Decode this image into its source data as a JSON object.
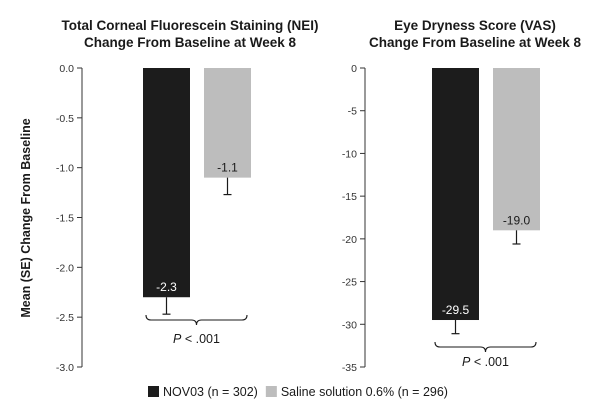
{
  "ylabel": "Mean (SE) Change From Baseline",
  "legend": [
    {
      "label": "NOV03 (n = 302)",
      "color": "#1c1c1c"
    },
    {
      "label": "Saline solution 0.6% (n = 296)",
      "color": "#bdbdbd"
    }
  ],
  "chart_data": [
    {
      "type": "bar",
      "title_lines": [
        "Total Corneal Fluorescein Staining (NEI)",
        "Change From Baseline at Week 8"
      ],
      "ylim": [
        -3.0,
        0.0
      ],
      "yticks": [
        "0.0",
        "-0.5",
        "-1.0",
        "-1.5",
        "-2.0",
        "-2.5",
        "-3.0"
      ],
      "series": [
        {
          "name": "NOV03 (n = 302)",
          "value": -2.3,
          "label": "-2.3",
          "se": 0.17,
          "color": "#1c1c1c"
        },
        {
          "name": "Saline solution 0.6% (n = 296)",
          "value": -1.1,
          "label": "-1.1",
          "se": 0.17,
          "color": "#bdbdbd"
        }
      ],
      "p_value": "P < .001"
    },
    {
      "type": "bar",
      "title_lines": [
        "Eye Dryness Score (VAS)",
        "Change From Baseline at Week 8"
      ],
      "ylim": [
        -35,
        0
      ],
      "yticks": [
        "0",
        "-5",
        "-10",
        "-15",
        "-20",
        "-25",
        "-30",
        "-35"
      ],
      "series": [
        {
          "name": "NOV03 (n = 302)",
          "value": -29.5,
          "label": "-29.5",
          "se": 1.6,
          "color": "#1c1c1c"
        },
        {
          "name": "Saline solution 0.6% (n = 296)",
          "value": -19.0,
          "label": "-19.0",
          "se": 1.6,
          "color": "#bdbdbd"
        }
      ],
      "p_value": "P < .001"
    }
  ]
}
